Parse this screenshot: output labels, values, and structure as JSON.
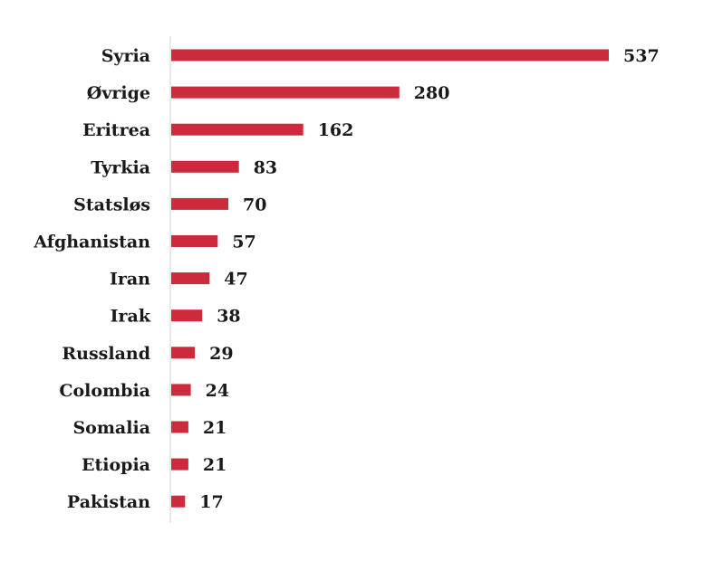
{
  "chart_data": {
    "type": "bar",
    "orientation": "horizontal",
    "title": "",
    "xlabel": "",
    "ylabel": "",
    "categories": [
      "Syria",
      "Øvrige",
      "Eritrea",
      "Tyrkia",
      "Statsløs",
      "Afghanistan",
      "Iran",
      "Irak",
      "Russland",
      "Colombia",
      "Somalia",
      "Etiopia",
      "Pakistan"
    ],
    "values": [
      537,
      280,
      162,
      83,
      70,
      57,
      47,
      38,
      29,
      24,
      21,
      21,
      17
    ],
    "xlim": [
      0,
      537
    ],
    "grid": false,
    "legend": "none",
    "bar_color": "#cc2a3d",
    "data_labels": true
  }
}
